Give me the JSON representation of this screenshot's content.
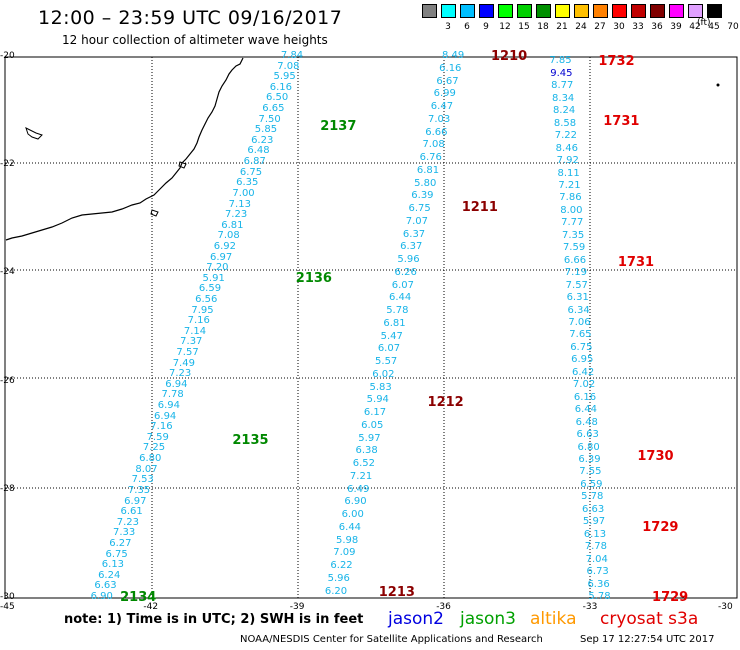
{
  "header": {
    "title": "12:00 – 23:59 UTC 09/16/2017",
    "subtitle": "12 hour collection of altimeter wave heights"
  },
  "legend": {
    "unit": "(ft)",
    "labels": [
      "3",
      "6",
      "9",
      "12",
      "15",
      "18",
      "21",
      "24",
      "27",
      "30",
      "33",
      "36",
      "39",
      "42",
      "45",
      "70"
    ],
    "colors": [
      "#808080",
      "#00ffff",
      "#00bfff",
      "#0000ff",
      "#00ff00",
      "#00d000",
      "#009000",
      "#ffff00",
      "#ffc000",
      "#ff8000",
      "#ff0000",
      "#c00000",
      "#800000",
      "#ff00ff",
      "#e0a0ff",
      "#000000"
    ]
  },
  "axes": {
    "y_ticks": [
      "-20",
      "-22",
      "-24",
      "-26",
      "-28",
      "-30"
    ],
    "x_ticks": [
      "-45",
      "-42",
      "-39",
      "-36",
      "-33",
      "-30"
    ]
  },
  "passes": [
    {
      "label": "2137",
      "sat": "jason3",
      "lat": -21.3,
      "lon": -38.5
    },
    {
      "label": "2136",
      "sat": "jason3",
      "lat": -24.1,
      "lon": -39.0
    },
    {
      "label": "2135",
      "sat": "jason3",
      "lat": -27.1,
      "lon": -40.3
    },
    {
      "label": "2134",
      "sat": "jason3",
      "lat": -30.0,
      "lon": -42.6
    },
    {
      "label": "1210",
      "sat": "altika",
      "lat": -20.0,
      "lon": -35.0
    },
    {
      "label": "1211",
      "sat": "altika",
      "lat": -22.8,
      "lon": -35.6
    },
    {
      "label": "1212",
      "sat": "altika",
      "lat": -26.4,
      "lon": -36.3
    },
    {
      "label": "1213",
      "sat": "altika",
      "lat": -29.9,
      "lon": -37.3
    },
    {
      "label": "1732",
      "sat": "cryosat",
      "lat": -20.1,
      "lon": -32.8
    },
    {
      "label": "1731",
      "sat": "cryosat",
      "lat": -21.2,
      "lon": -32.7
    },
    {
      "label": "1731",
      "sat": "cryosat",
      "lat": -23.8,
      "lon": -32.4
    },
    {
      "label": "1730",
      "sat": "cryosat",
      "lat": -27.4,
      "lon": -32.0
    },
    {
      "label": "1729",
      "sat": "cryosat",
      "lat": -28.7,
      "lon": -31.9
    },
    {
      "label": "1729",
      "sat": "cryosat",
      "lat": -30.0,
      "lon": -31.7
    }
  ],
  "tracks": [
    {
      "name": "jason3",
      "start": {
        "lat": -20.0,
        "lon": -39.1
      },
      "end": {
        "lat": -30.0,
        "lon": -43.0
      },
      "values": [
        "7.84",
        "7.08",
        "5.95",
        "6.16",
        "6.50",
        "6.65",
        "7.50",
        "5.85",
        "6.23",
        "6.48",
        "6.87",
        "6.75",
        "6.35",
        "7.00",
        "7.13",
        "7.23",
        "6.81",
        "7.08",
        "6.92",
        "6.97",
        "7.20",
        "5.91",
        "6.59",
        "6.56",
        "7.95",
        "7.16",
        "7.14",
        "7.37",
        "7.57",
        "7.49",
        "7.23",
        "6.94",
        "7.78",
        "6.94",
        "6.94",
        "7.16",
        "7.59",
        "7.25",
        "6.80",
        "8.07",
        "7.53",
        "7.35",
        "6.97",
        "6.61",
        "7.23",
        "7.33",
        "6.27",
        "6.75",
        "6.13",
        "6.24",
        "6.63",
        "6.90"
      ]
    },
    {
      "name": "altika",
      "start": {
        "lat": -20.0,
        "lon": -35.8
      },
      "end": {
        "lat": -29.9,
        "lon": -38.2
      },
      "values": [
        "8.49",
        "6.16",
        "6.67",
        "6.99",
        "6.47",
        "7.03",
        "6.66",
        "7.08",
        "6.76",
        "6.81",
        "5.80",
        "6.39",
        "6.75",
        "7.07",
        "6.37",
        "6.37",
        "5.96",
        "6.26",
        "6.07",
        "6.44",
        "5.78",
        "6.81",
        "5.47",
        "6.07",
        "5.57",
        "6.02",
        "5.83",
        "5.94",
        "6.17",
        "6.05",
        "5.97",
        "6.38",
        "6.52",
        "7.21",
        "6.49",
        "6.90",
        "6.00",
        "6.44",
        "5.98",
        "7.09",
        "6.22",
        "5.96",
        "6.20"
      ]
    },
    {
      "name": "cryosat",
      "start": {
        "lat": -20.1,
        "lon": -33.6
      },
      "end": {
        "lat": -30.0,
        "lon": -32.8
      },
      "values": [
        "7.85",
        "9.45",
        "8.77",
        "8.34",
        "8.24",
        "8.58",
        "7.22",
        "8.46",
        "7.92",
        "8.11",
        "7.21",
        "7.86",
        "8.00",
        "7.77",
        "7.35",
        "7.59",
        "6.66",
        "7.19",
        "7.57",
        "6.31",
        "6.34",
        "7.06",
        "7.65",
        "6.75",
        "6.95",
        "6.42",
        "7.02",
        "6.16",
        "6.44",
        "6.48",
        "6.63",
        "6.80",
        "6.39",
        "7.55",
        "6.59",
        "5.78",
        "6.63",
        "5.97",
        "6.13",
        "7.78",
        "7.04",
        "6.73",
        "6.36",
        "5.78"
      ]
    }
  ],
  "footer": {
    "note": "note: 1) Time is in UTC; 2) SWH is in feet",
    "satellites": [
      {
        "label": "jason2",
        "color": "#0000e0"
      },
      {
        "label": "jason3",
        "color": "#00a000"
      },
      {
        "label": "altika",
        "color": "#ff9900"
      },
      {
        "label": "cryosat s3a",
        "color": "#e00000"
      }
    ],
    "credit": "NOAA/NESDIS Center for Satellite Applications and Research",
    "timestamp": "Sep 17 12:27:54 UTC 2017"
  },
  "colors": {
    "value_text": "#18b4e8",
    "value_highlight": "#0000d0",
    "jason3_pass": "#008800",
    "altika_pass": "#8b0000",
    "cryosat_pass": "#e00000"
  }
}
